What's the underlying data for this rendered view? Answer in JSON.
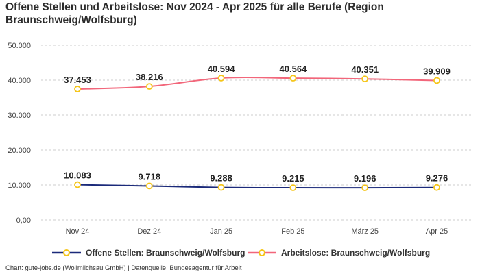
{
  "title": "Offene Stellen und Arbeitslose: Nov 2024 - Apr 2025 für alle Berufe (Region Braunschweig/Wolfsburg)",
  "source": "Chart: gute-jobs.de (Wollmilchsau GmbH) | Datenquelle: Bundesagentur für Arbeit",
  "colors": {
    "offene_stellen": "#1b2a7a",
    "arbeitslose": "#f2667a",
    "marker_stroke": "#f5c518",
    "grid": "#cccccc"
  },
  "chart_data": {
    "type": "line",
    "categories": [
      "Nov 24",
      "Dez 24",
      "Jan 25",
      "Feb 25",
      "März 25",
      "Apr 25"
    ],
    "ylim": [
      0,
      50000
    ],
    "yticks": [
      "0,00",
      "10.000",
      "20.000",
      "30.000",
      "40.000",
      "50.000"
    ],
    "grid": true,
    "legend_position": "bottom",
    "series": [
      {
        "name": "Offene Stellen: Braunschweig/Wolfsburg",
        "values": [
          10083,
          9718,
          9288,
          9215,
          9196,
          9276
        ],
        "labels": [
          "10.083",
          "9.718",
          "9.288",
          "9.215",
          "9.196",
          "9.276"
        ]
      },
      {
        "name": "Arbeitslose: Braunschweig/Wolfsburg",
        "values": [
          37453,
          38216,
          40594,
          40564,
          40351,
          39909
        ],
        "labels": [
          "37.453",
          "38.216",
          "40.594",
          "40.564",
          "40.351",
          "39.909"
        ]
      }
    ]
  }
}
